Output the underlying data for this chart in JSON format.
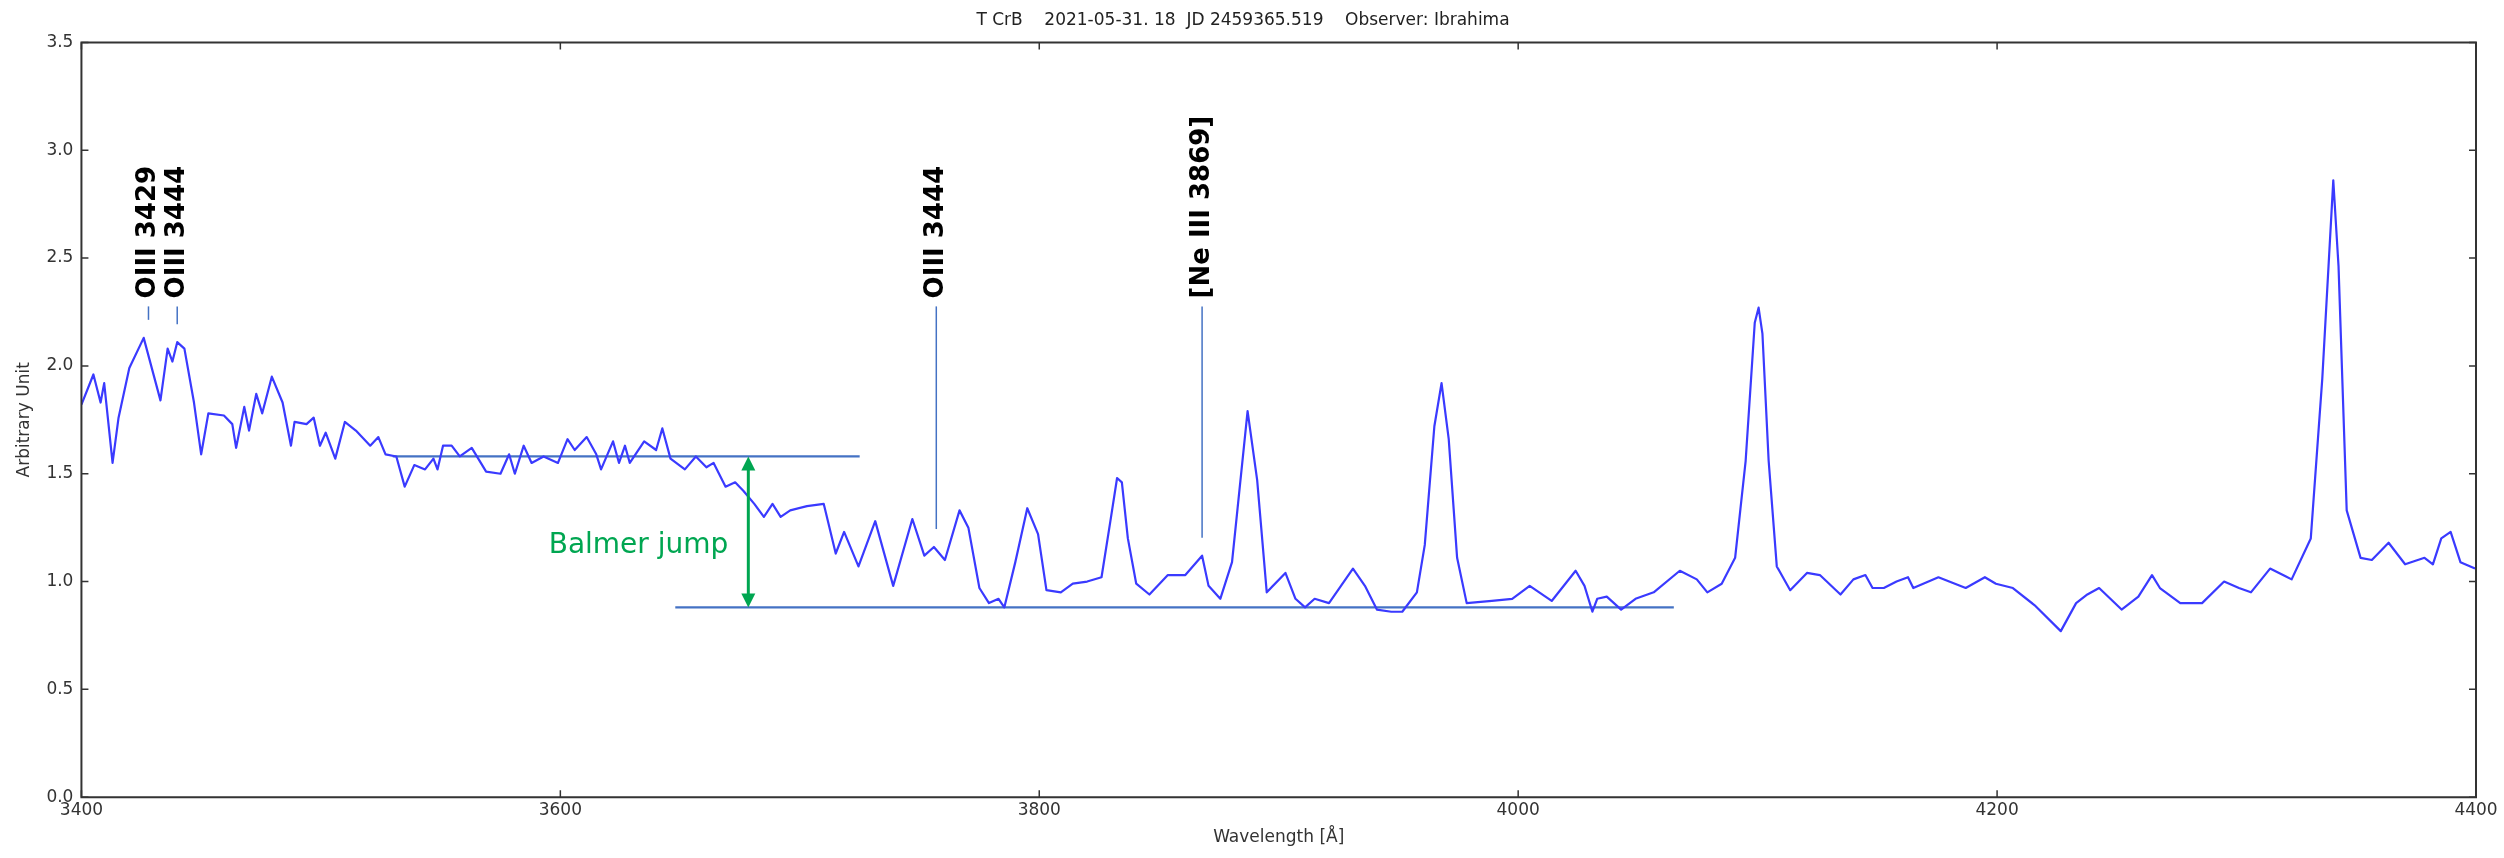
{
  "chart_data": {
    "type": "line",
    "title": "T CrB    2021-05-31. 18  JD 2459365.519    Observer: Ibrahima",
    "xlabel": "Wavelength [Å]",
    "ylabel": "Arbitrary Unit",
    "xlim": [
      3400,
      4400
    ],
    "xticks": [
      3400,
      3600,
      3800,
      4000,
      4200,
      4400
    ],
    "ylim": [
      0,
      3.5
    ],
    "yticks": [
      {
        "value": 0,
        "label": "0.0"
      },
      {
        "value": 0.5,
        "label": "0.5"
      },
      {
        "value": 1,
        "label": "1.0"
      },
      {
        "value": 1.5,
        "label": "1.5"
      },
      {
        "value": 2,
        "label": "2.0"
      },
      {
        "value": 2.5,
        "label": "2.5"
      },
      {
        "value": 3,
        "label": "3.0"
      },
      {
        "value": 3.5,
        "label": "3.5"
      }
    ],
    "grid": false,
    "legend": false,
    "marker": "none",
    "line_style": "solid",
    "series": [
      {
        "color": "#3a3aff",
        "x": [
          3400,
          3405,
          3408,
          3409.5,
          3413,
          3415.5,
          3420,
          3426,
          3433,
          3436,
          3438,
          3440,
          3443,
          3447,
          3450,
          3453,
          3459.5,
          3463,
          3464.6,
          3468,
          3470,
          3473,
          3475.5,
          3479.5,
          3484,
          3487.5,
          3489,
          3494,
          3497,
          3499.6,
          3502,
          3506,
          3510,
          3514.6,
          3520.6,
          3524,
          3527,
          3531.5,
          3535,
          3539,
          3543.5,
          3547,
          3548.7,
          3551,
          3554.6,
          3558,
          3563,
          3569,
          3575,
          3578.6,
          3581,
          3584.7,
          3588,
          3593,
          3599,
          3603,
          3606,
          3611,
          3615,
          3617,
          3622,
          3624.5,
          3627,
          3629,
          3635,
          3640,
          3642.6,
          3646,
          3652,
          3656.6,
          3661,
          3664,
          3669,
          3673,
          3676.5,
          3681,
          3685,
          3688.6,
          3692,
          3696,
          3703,
          3710,
          3715,
          3718.5,
          3724.5,
          3731.5,
          3739,
          3747,
          3752,
          3756,
          3760.6,
          3766.7,
          3770.4,
          3775,
          3779,
          3783,
          3785.4,
          3790,
          3795,
          3799.5,
          3803,
          3809,
          3814,
          3820,
          3826,
          3829.7,
          3832.5,
          3834.5,
          3837,
          3840.5,
          3846,
          3853.7,
          3861,
          3868,
          3870.7,
          3875.6,
          3880.5,
          3887,
          3891,
          3895,
          3902.8,
          3907,
          3911,
          3915,
          3921,
          3926,
          3931,
          3936,
          3941,
          3947,
          3951.6,
          3957.7,
          3961,
          3965,
          3968,
          3971,
          3974.5,
          3978.5,
          3989,
          3997.5,
          4004.8,
          4014,
          4024,
          4027.7,
          4031,
          4033,
          4037,
          4043,
          4049,
          4056.6,
          4067.5,
          4074.6,
          4079,
          4085,
          4090.6,
          4095,
          4098.8,
          4100.4,
          4102,
          4104.6,
          4108,
          4113.6,
          4120.6,
          4126,
          4134.6,
          4140,
          4145,
          4148,
          4152.7,
          4158,
          4162.8,
          4165,
          4175.5,
          4186.9,
          4194.9,
          4199.5,
          4206.6,
          4215.7,
          4226.6,
          4233,
          4237.7,
          4242.6,
          4252,
          4259,
          4264.7,
          4268,
          4276.5,
          4285.6,
          4294.8,
          4301,
          4306,
          4314,
          4323,
          4331,
          4335.8,
          4340.4,
          4342.6,
          4346,
          4351.8,
          4356.5,
          4363.5,
          4370.4,
          4378.5,
          4382,
          4385.5,
          4389.4,
          4393.5,
          4399.6
        ],
        "values": [
          1.82,
          1.96,
          1.83,
          1.92,
          1.55,
          1.76,
          1.99,
          2.13,
          1.84,
          2.08,
          2.02,
          2.11,
          2.08,
          1.83,
          1.59,
          1.78,
          1.77,
          1.73,
          1.62,
          1.81,
          1.7,
          1.87,
          1.78,
          1.95,
          1.83,
          1.63,
          1.74,
          1.73,
          1.76,
          1.63,
          1.69,
          1.57,
          1.74,
          1.7,
          1.63,
          1.67,
          1.59,
          1.58,
          1.44,
          1.54,
          1.52,
          1.57,
          1.52,
          1.63,
          1.63,
          1.58,
          1.62,
          1.51,
          1.5,
          1.59,
          1.5,
          1.63,
          1.55,
          1.58,
          1.55,
          1.66,
          1.61,
          1.67,
          1.59,
          1.52,
          1.65,
          1.55,
          1.63,
          1.55,
          1.65,
          1.61,
          1.71,
          1.57,
          1.52,
          1.58,
          1.53,
          1.55,
          1.44,
          1.46,
          1.42,
          1.36,
          1.3,
          1.36,
          1.3,
          1.33,
          1.35,
          1.36,
          1.13,
          1.23,
          1.07,
          1.28,
          0.98,
          1.29,
          1.12,
          1.16,
          1.1,
          1.33,
          1.25,
          0.97,
          0.9,
          0.92,
          0.88,
          1.09,
          1.34,
          1.22,
          0.96,
          0.95,
          0.99,
          1.0,
          1.02,
          1.28,
          1.48,
          1.46,
          1.2,
          0.99,
          0.94,
          1.03,
          1.03,
          1.12,
          0.98,
          0.92,
          1.09,
          1.79,
          1.47,
          0.95,
          1.04,
          0.92,
          0.88,
          0.92,
          0.9,
          0.98,
          1.06,
          0.98,
          0.87,
          0.86,
          0.86,
          0.95,
          1.17,
          1.72,
          1.92,
          1.66,
          1.11,
          0.9,
          0.91,
          0.92,
          0.98,
          0.91,
          1.05,
          0.98,
          0.86,
          0.92,
          0.93,
          0.87,
          0.92,
          0.95,
          1.05,
          1.01,
          0.95,
          0.99,
          1.11,
          1.56,
          2.2,
          2.27,
          2.15,
          1.56,
          1.07,
          0.96,
          1.04,
          1.03,
          0.94,
          1.01,
          1.03,
          0.97,
          0.97,
          1.0,
          1.02,
          0.97,
          1.02,
          0.97,
          1.02,
          0.99,
          0.97,
          0.89,
          0.77,
          0.9,
          0.94,
          0.97,
          0.87,
          0.93,
          1.03,
          0.97,
          0.9,
          0.9,
          1.0,
          0.97,
          0.95,
          1.06,
          1.01,
          1.2,
          1.94,
          2.86,
          2.46,
          1.33,
          1.11,
          1.1,
          1.18,
          1.08,
          1.11,
          1.08,
          1.2,
          1.23,
          1.09,
          1.06
        ]
      },
      {
        "color": "#4472c4",
        "x": [
          3530,
          3725
        ],
        "values": [
          1.58,
          1.58
        ]
      },
      {
        "color": "#4472c4",
        "x": [
          3648,
          4065
        ],
        "values": [
          0.88,
          0.88
        ]
      }
    ],
    "ref_lines": [
      {
        "axis": "x",
        "value": 3428,
        "label": "OIII 3429",
        "color": "#4472c4"
      },
      {
        "axis": "x",
        "value": 3440,
        "label": "OIII 3444",
        "color": "#4472c4"
      },
      {
        "axis": "x",
        "value": 3757,
        "label": "OIII 3444",
        "color": "#4472c4"
      },
      {
        "axis": "x",
        "value": 3868,
        "label": "[Ne III 3869]",
        "color": "#4472c4"
      }
    ],
    "annotations": [
      "Balmer jump"
    ]
  }
}
